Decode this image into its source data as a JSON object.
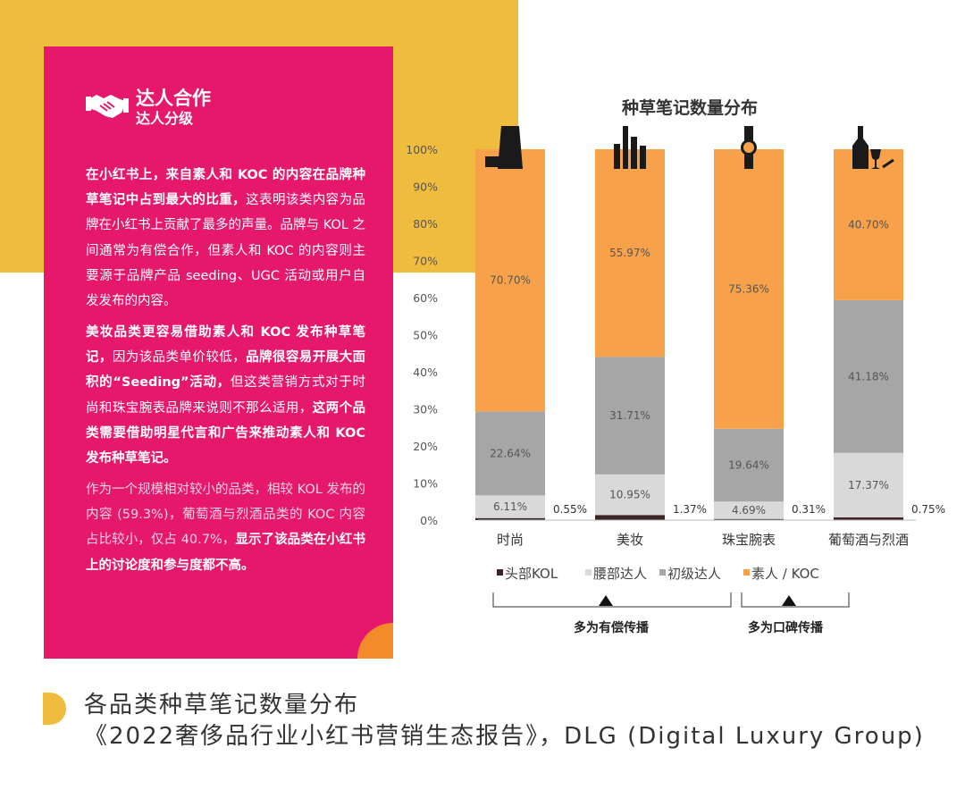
{
  "panel": {
    "title": "达人合作",
    "subtitle": "达人分级",
    "p1_bold": "在小红书上，来自素人和 KOC 的内容在品牌种草笔记中占到最大的比重，",
    "p1_rest": "这表明该类内容为品牌在小红书上贡献了最多的声量。品牌与 KOL 之间通常为有偿合作，但素人和 KOC 的内容则主要源于品牌产品 seeding、UGC 活动或用户自发发布的内容。",
    "p2_a": "美妆品类更容易借助素人和 KOC 发布种草笔记，",
    "p2_b": "因为该品类单价较低，",
    "p2_c": "品牌很容易开展大面积的“Seeding”活动，",
    "p2_d": "但这类营销方式对于时尚和珠宝腕表品牌来说则不那么适用，",
    "p2_e": "这两个品类需要借助明星代言和广告来推动素人和 KOC 发布种草笔记。",
    "p3_a": "作为一个规模相对较小的品类，相较 KOL 发布的内容 (59.3%)，葡萄酒与烈酒品类的 KOC 内容占比较小，仅占 40.7%，",
    "p3_b": "显示了该品类在小红书上的讨论度和参与度都不高。"
  },
  "chart_data": {
    "type": "bar",
    "stacked": true,
    "title": "种草笔记数量分布",
    "categories": [
      "时尚",
      "美妆",
      "珠宝腕表",
      "葡萄酒与烈酒"
    ],
    "category_icons": [
      "suit-bag-icon",
      "makeup-icon",
      "watch-icon",
      "wine-bottle-glass-icon"
    ],
    "series": [
      {
        "name": "头部KOL",
        "color": "#3A2424",
        "values": [
          0.55,
          1.37,
          0.31,
          0.75
        ]
      },
      {
        "name": "腰部达人",
        "color": "#D9D9D9",
        "values": [
          6.11,
          10.95,
          4.69,
          17.37
        ]
      },
      {
        "name": "初级达人",
        "color": "#A6A6A6",
        "values": [
          22.64,
          31.71,
          19.64,
          41.18
        ]
      },
      {
        "name": "素人 / KOC",
        "color": "#F7A24B",
        "values": [
          70.7,
          55.97,
          75.36,
          40.7
        ]
      }
    ],
    "value_labels": [
      [
        "0.55%",
        "6.11%",
        "22.64%",
        "70.70%"
      ],
      [
        "1.37%",
        "10.95%",
        "31.71%",
        "55.97%"
      ],
      [
        "0.31%",
        "4.69%",
        "19.64%",
        "75.36%"
      ],
      [
        "0.75%",
        "17.37%",
        "41.18%",
        "40.70%"
      ]
    ],
    "y_ticks": [
      "0%",
      "10%",
      "20%",
      "30%",
      "40%",
      "50%",
      "60%",
      "70%",
      "80%",
      "90%",
      "100%"
    ],
    "ylim": [
      0,
      100
    ],
    "legend_position": "bottom",
    "annotations": [
      "多为有偿传播",
      "多为口碑传播"
    ]
  },
  "caption": {
    "line1": "各品类种草笔记数量分布",
    "line2": "《2022奢侈品行业小红书营销生态报告》，DLG (Digital Luxury Group)"
  }
}
